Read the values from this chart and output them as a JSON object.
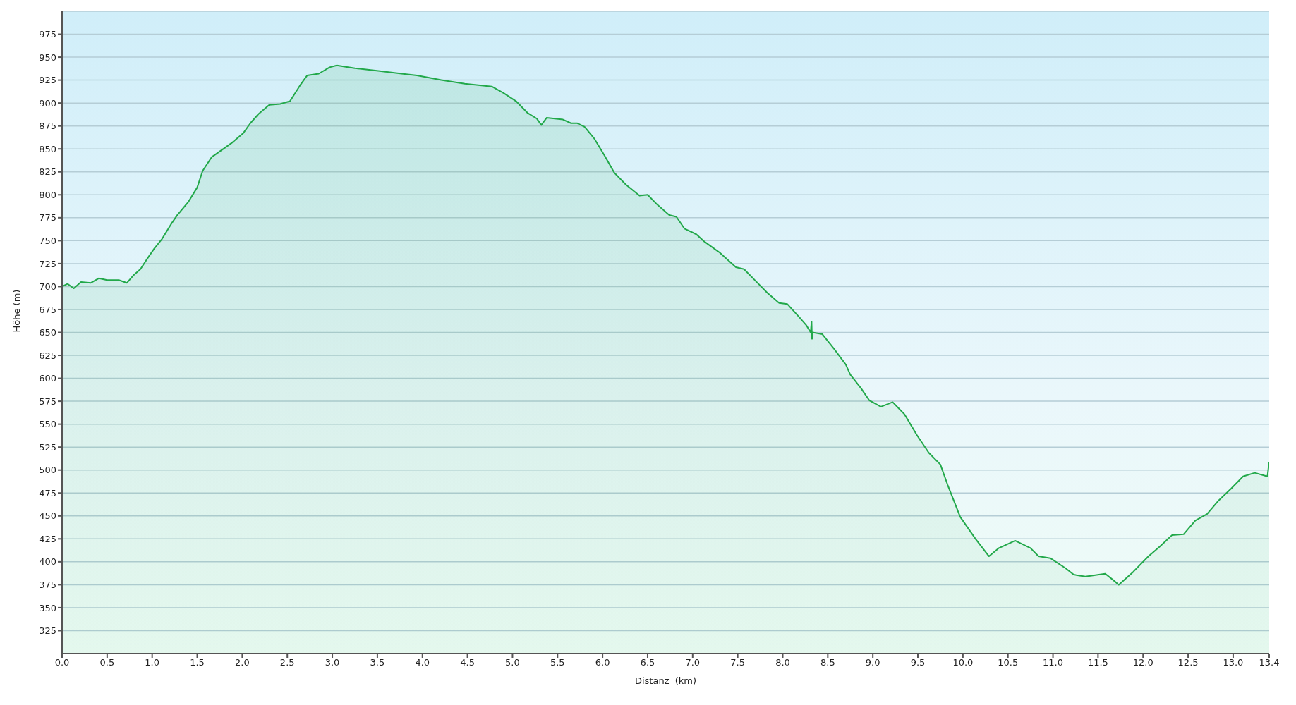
{
  "chart_data": {
    "type": "area",
    "xlabel": "Distanz  (km)",
    "ylabel": "Höhe (m)",
    "xlim": [
      0,
      13.4
    ],
    "xticks": [
      {
        "value": 0,
        "label": "0.0"
      },
      0.5,
      {
        "value": 1,
        "label": "1.0"
      },
      1.5,
      {
        "value": 2,
        "label": "2.0"
      },
      2.5,
      {
        "value": 3,
        "label": "3.0"
      },
      3.5,
      {
        "value": 4,
        "label": "4.0"
      },
      4.5,
      {
        "value": 5,
        "label": "5.0"
      },
      5.5,
      {
        "value": 6,
        "label": "6.0"
      },
      6.5,
      {
        "value": 7,
        "label": "7.0"
      },
      7.5,
      {
        "value": 8,
        "label": "8.0"
      },
      8.5,
      {
        "value": 9,
        "label": "9.0"
      },
      9.5,
      {
        "value": 10,
        "label": "10.0"
      },
      10.5,
      {
        "value": 11,
        "label": "11.0"
      },
      11.5,
      {
        "value": 12,
        "label": "12.0"
      },
      12.5,
      {
        "value": 13,
        "label": "13.0"
      },
      13.4
    ],
    "ylim": [
      300,
      1000
    ],
    "yticks": [
      325,
      350,
      375,
      400,
      425,
      450,
      475,
      500,
      525,
      550,
      575,
      600,
      625,
      650,
      675,
      700,
      725,
      750,
      775,
      800,
      825,
      850,
      875,
      900,
      925,
      950,
      975
    ],
    "grid": "y",
    "legend": false,
    "series": [
      {
        "color": "#22a84a",
        "x": [
          0,
          0.06,
          0.13,
          0.21,
          0.32,
          0.41,
          0.5,
          0.63,
          0.72,
          0.79,
          0.87,
          0.95,
          1.02,
          1.11,
          1.21,
          1.28,
          1.4,
          1.5,
          1.56,
          1.66,
          1.76,
          1.89,
          2.01,
          2.09,
          2.18,
          2.3,
          2.42,
          2.53,
          2.64,
          2.72,
          2.85,
          2.97,
          3.05,
          3.25,
          3.51,
          3.77,
          3.94,
          4.21,
          4.47,
          4.77,
          4.9,
          5.04,
          5.17,
          5.27,
          5.32,
          5.38,
          5.56,
          5.65,
          5.72,
          5.8,
          5.91,
          6.02,
          6.13,
          6.26,
          6.41,
          6.5,
          6.61,
          6.74,
          6.82,
          6.91,
          7.04,
          7.13,
          7.3,
          7.48,
          7.57,
          7.7,
          7.83,
          7.96,
          8.05,
          8.18,
          8.26,
          8.31,
          8.32,
          8.325,
          8.33,
          8.44,
          8.57,
          8.7,
          8.75,
          8.87,
          8.96,
          9.09,
          9.22,
          9.35,
          9.49,
          9.62,
          9.75,
          9.83,
          9.97,
          10.14,
          10.29,
          10.4,
          10.58,
          10.75,
          10.84,
          10.97,
          11.14,
          11.23,
          11.36,
          11.58,
          11.67,
          11.73,
          11.89,
          12.06,
          12.19,
          12.32,
          12.45,
          12.58,
          12.71,
          12.84,
          12.98,
          13.11,
          13.24,
          13.38,
          13.4
        ],
        "values": [
          700,
          703,
          698,
          705,
          704,
          709,
          707,
          707,
          704,
          712,
          719,
          731,
          741,
          752,
          768,
          778,
          792,
          808,
          826,
          841,
          848,
          857,
          867,
          878,
          888,
          898,
          899,
          902,
          919,
          930,
          932,
          939,
          941,
          938,
          935,
          932,
          930,
          925,
          921,
          918,
          911,
          902,
          889,
          883,
          876,
          884,
          882,
          878,
          878,
          874,
          861,
          843,
          824,
          811,
          799,
          800,
          789,
          778,
          776,
          763,
          757,
          749,
          737,
          721,
          719,
          706,
          693,
          682,
          681,
          667,
          658,
          650,
          662,
          643,
          650,
          648,
          632,
          615,
          604,
          589,
          576,
          569,
          574,
          561,
          538,
          519,
          506,
          484,
          449,
          425,
          406,
          415,
          423,
          415,
          406,
          404,
          393,
          386,
          384,
          387,
          380,
          375,
          389,
          406,
          417,
          429,
          430,
          445,
          452,
          467,
          480,
          493,
          497,
          493,
          509
        ]
      }
    ]
  }
}
